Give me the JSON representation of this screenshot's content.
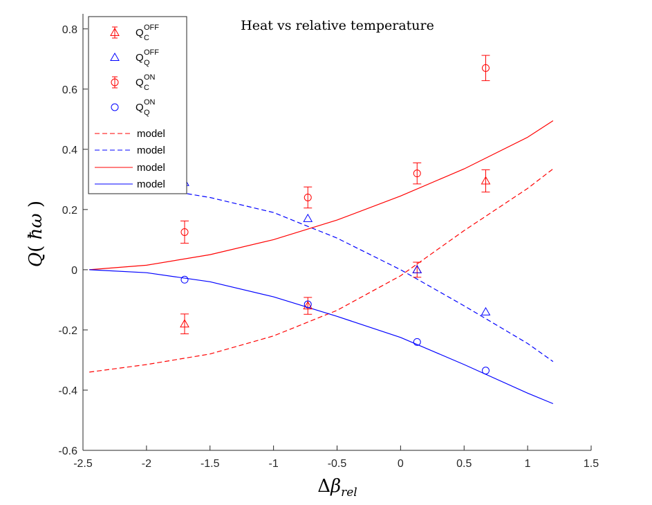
{
  "chart_data": {
    "type": "scatter",
    "title": "Heat vs relative temperature",
    "xlabel": "Δβ_rel",
    "ylabel": "Q( ħω )",
    "xlim": [
      -2.5,
      1.5
    ],
    "ylim": [
      -0.6,
      0.85
    ],
    "xticks": [
      -2.5,
      -2,
      -1.5,
      -1,
      -0.5,
      0,
      0.5,
      1,
      1.5
    ],
    "xtick_labels": [
      "-2.5",
      "-2",
      "-1.5",
      "-1",
      "-0.5",
      "0",
      "0.5",
      "1",
      "1.5"
    ],
    "yticks": [
      -0.6,
      -0.4,
      -0.2,
      0,
      0.2,
      0.4,
      0.6,
      0.8
    ],
    "ytick_labels": [
      "-0.6",
      "-0.4",
      "-0.2",
      "0",
      "0.2",
      "0.4",
      "0.6",
      "0.8"
    ],
    "grid": false,
    "legend_placement": "top-left",
    "series": [
      {
        "name": "Q_C^OFF",
        "legend": {
          "base": "Q",
          "sub": "C",
          "sup": "OFF"
        },
        "kind": "points",
        "marker": "triangle",
        "color": "#ff0000",
        "errorbars": true,
        "x": [
          -1.7,
          -0.73,
          0.13,
          0.67
        ],
        "y": [
          -0.18,
          -0.12,
          0.0,
          0.295
        ],
        "err": [
          0.033,
          0.028,
          0.025,
          0.037
        ]
      },
      {
        "name": "Q_Q^OFF",
        "legend": {
          "base": "Q",
          "sub": "Q",
          "sup": "OFF"
        },
        "kind": "points",
        "marker": "triangle",
        "color": "#0000ff",
        "errorbars": false,
        "x": [
          -1.7,
          -0.73,
          0.13,
          0.67
        ],
        "y": [
          0.29,
          0.17,
          0.0,
          -0.14
        ]
      },
      {
        "name": "Q_C^ON",
        "legend": {
          "base": "Q",
          "sub": "C",
          "sup": "ON"
        },
        "kind": "points",
        "marker": "circle",
        "color": "#ff0000",
        "errorbars": true,
        "x": [
          -1.7,
          -0.73,
          0.13,
          0.67
        ],
        "y": [
          0.125,
          0.24,
          0.32,
          0.67
        ],
        "err": [
          0.037,
          0.035,
          0.035,
          0.042
        ]
      },
      {
        "name": "Q_Q^ON",
        "legend": {
          "base": "Q",
          "sub": "Q",
          "sup": "ON"
        },
        "kind": "points",
        "marker": "circle",
        "color": "#0000ff",
        "errorbars": false,
        "x": [
          -1.7,
          -0.73,
          0.13,
          0.67
        ],
        "y": [
          -0.033,
          -0.115,
          -0.24,
          -0.335
        ]
      },
      {
        "name": "model",
        "kind": "line",
        "dash": "dashed",
        "color": "#ff0000",
        "x": [
          -2.45,
          -2.0,
          -1.5,
          -1.0,
          -0.5,
          0.0,
          0.5,
          1.0,
          1.2
        ],
        "y": [
          -0.34,
          -0.315,
          -0.28,
          -0.22,
          -0.135,
          -0.02,
          0.13,
          0.27,
          0.335
        ]
      },
      {
        "name": "model",
        "kind": "line",
        "dash": "dashed",
        "color": "#0000ff",
        "x": [
          -2.45,
          -2.0,
          -1.5,
          -1.0,
          -0.5,
          0.0,
          0.5,
          1.0,
          1.2
        ],
        "y": [
          0.3,
          0.275,
          0.24,
          0.19,
          0.105,
          0.0,
          -0.12,
          -0.245,
          -0.305
        ]
      },
      {
        "name": "model",
        "kind": "line",
        "dash": "solid",
        "color": "#ff0000",
        "x": [
          -2.45,
          -2.0,
          -1.5,
          -1.0,
          -0.5,
          0.0,
          0.5,
          1.0,
          1.2
        ],
        "y": [
          0.0,
          0.015,
          0.05,
          0.1,
          0.165,
          0.245,
          0.335,
          0.44,
          0.495
        ]
      },
      {
        "name": "model",
        "kind": "line",
        "dash": "solid",
        "color": "#0000ff",
        "x": [
          -2.45,
          -2.0,
          -1.5,
          -1.0,
          -0.5,
          0.0,
          0.5,
          1.0,
          1.2
        ],
        "y": [
          0.0,
          -0.01,
          -0.04,
          -0.09,
          -0.155,
          -0.225,
          -0.315,
          -0.41,
          -0.445
        ]
      }
    ]
  }
}
